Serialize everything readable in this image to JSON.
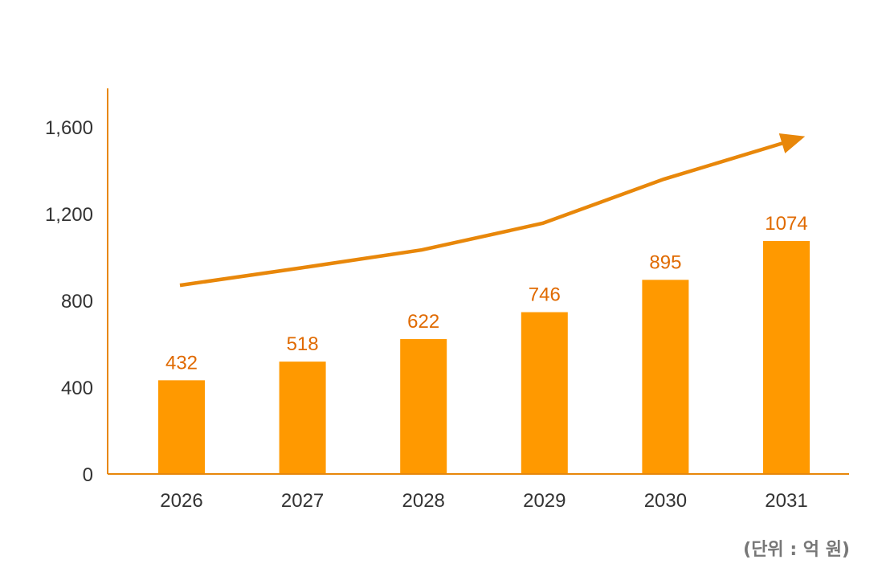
{
  "chart_data": {
    "type": "bar",
    "categories": [
      "2026",
      "2027",
      "2028",
      "2029",
      "2030",
      "2031"
    ],
    "values": [
      432,
      518,
      622,
      746,
      895,
      1074
    ],
    "data_labels": [
      "432",
      "518",
      "622",
      "746",
      "895",
      "1074"
    ],
    "trend_line": {
      "values": [
        870,
        950,
        1033,
        1156,
        1359,
        1537
      ],
      "arrow": true
    },
    "ylim": [
      0,
      1770
    ],
    "yticks": [
      0,
      400,
      800,
      1200,
      1600
    ],
    "ytick_labels": [
      "0",
      "400",
      "800",
      "1,200",
      "1,600"
    ],
    "grid": false,
    "unit_note": "(단위 : 억 원)",
    "colors": {
      "bar": "#FF9900",
      "label": "#E06A00",
      "line": "#E8870A",
      "axis": "#E8870A"
    }
  }
}
